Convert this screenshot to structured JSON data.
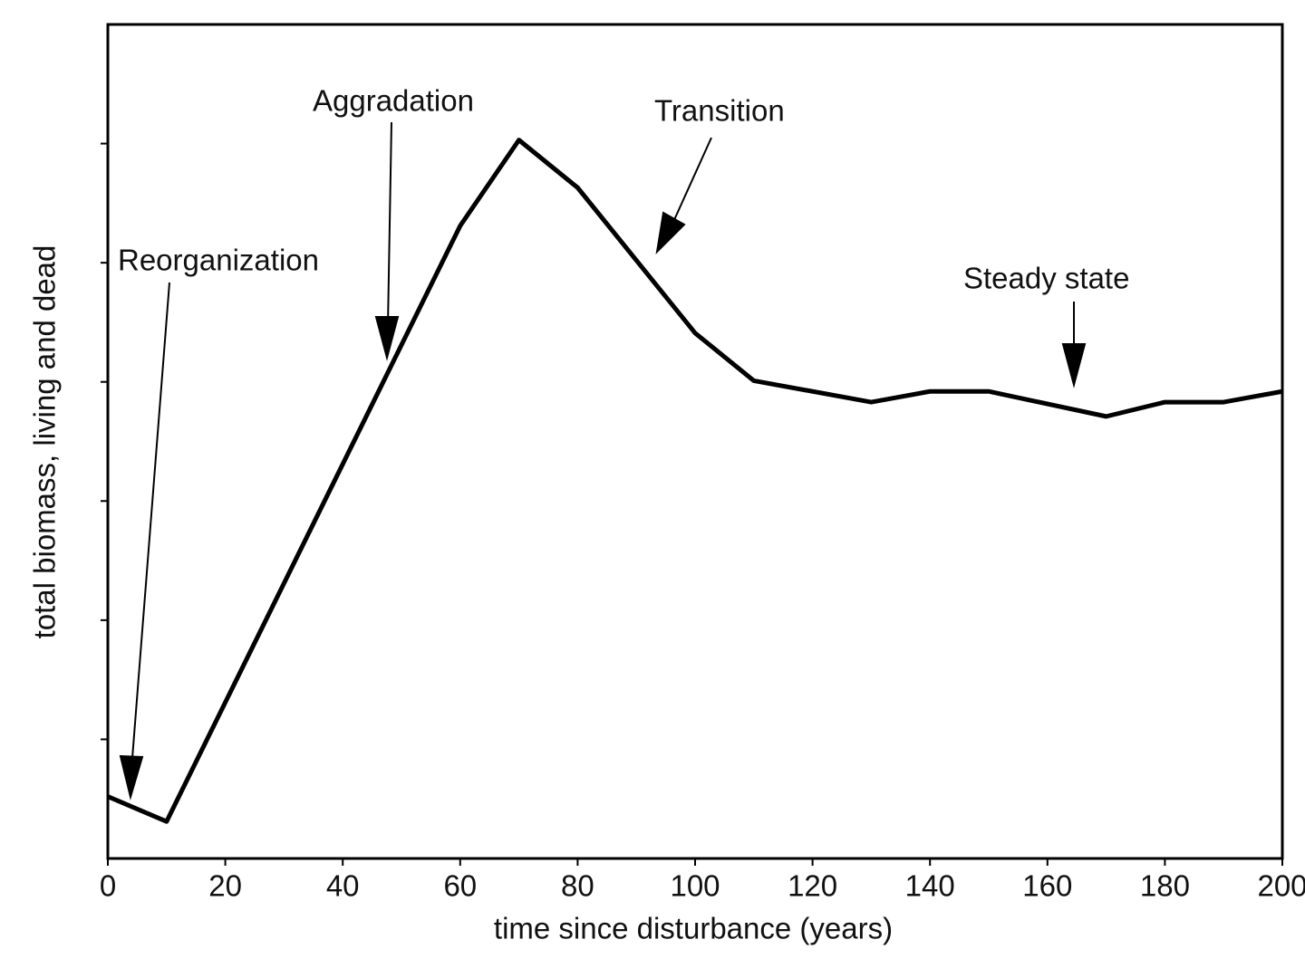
{
  "chart_data": {
    "type": "line",
    "x_label": "time since disturbance (years)",
    "y_label": "total biomass, living and dead",
    "x": [
      0,
      10,
      60,
      70,
      80,
      100,
      110,
      130,
      140,
      150,
      170,
      180,
      190,
      200
    ],
    "series": [
      {
        "name": "total biomass",
        "color": "#000000",
        "values": [
          0.52,
          0.31,
          5.31,
          6.03,
          5.63,
          4.41,
          4.01,
          3.83,
          3.92,
          3.92,
          3.71,
          3.83,
          3.83,
          3.92
        ]
      }
    ],
    "xlim": [
      0,
      200
    ],
    "xticks": [
      0,
      20,
      40,
      60,
      80,
      100,
      120,
      140,
      160,
      180,
      200
    ],
    "ylim": [
      0,
      7
    ],
    "yticks": [
      1,
      2,
      3,
      4,
      5,
      6
    ],
    "annotations": [
      "Reorganization",
      "Aggradation",
      "Transition",
      "Steady state"
    ]
  }
}
